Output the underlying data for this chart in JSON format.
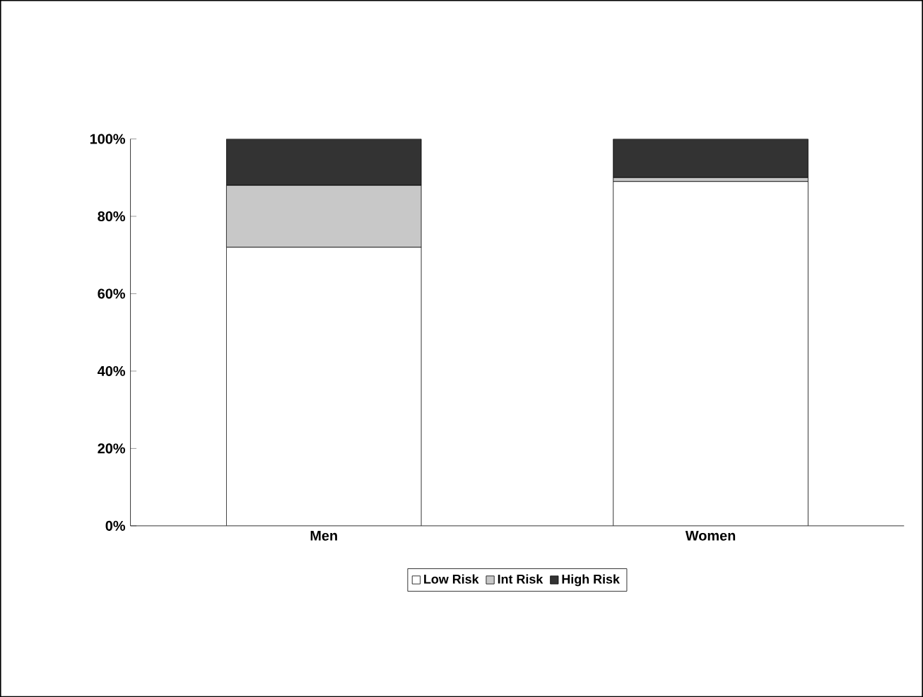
{
  "chart_data": {
    "type": "bar",
    "stacked": true,
    "categories": [
      "Men",
      "Women"
    ],
    "series": [
      {
        "name": "Low Risk",
        "color": "#ffffff",
        "values": [
          72,
          89
        ]
      },
      {
        "name": "Int Risk",
        "color": "#c8c8c8",
        "values": [
          16,
          1
        ]
      },
      {
        "name": "High Risk",
        "color": "#333333",
        "values": [
          12,
          10
        ]
      }
    ],
    "ylim": [
      0,
      100
    ],
    "yticks": [
      {
        "value": 0,
        "label": "0%"
      },
      {
        "value": 20,
        "label": "20%"
      },
      {
        "value": 40,
        "label": "40%"
      },
      {
        "value": 60,
        "label": "60%"
      },
      {
        "value": 80,
        "label": "80%"
      },
      {
        "value": 100,
        "label": "100%"
      }
    ],
    "grid": false,
    "legend": "bottom"
  }
}
